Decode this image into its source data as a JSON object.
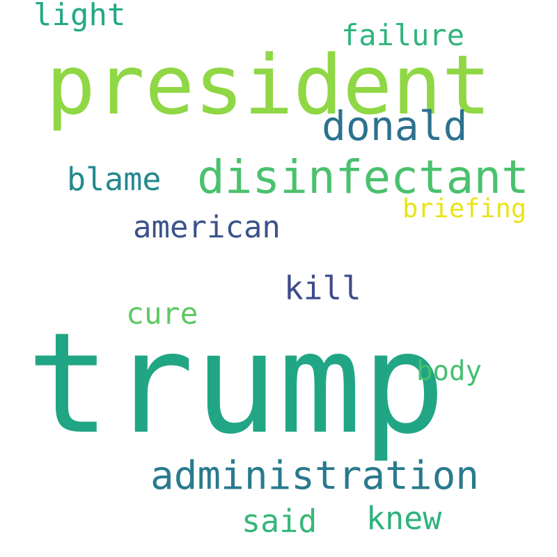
{
  "background_color": "#ffffff",
  "words": {
    "trump": {
      "text": "trump",
      "color": "#21a685"
    },
    "president": {
      "text": "president",
      "color": "#8fd744"
    },
    "disinfectant": {
      "text": "disinfectant",
      "color": "#4ac16d"
    },
    "donald": {
      "text": "donald",
      "color": "#2c718e"
    },
    "administration": {
      "text": "administration",
      "color": "#297a8e"
    },
    "american": {
      "text": "american",
      "color": "#3b528b"
    },
    "blame": {
      "text": "blame",
      "color": "#23898e"
    },
    "light": {
      "text": "light",
      "color": "#22a884"
    },
    "failure": {
      "text": "failure",
      "color": "#2fb47c"
    },
    "briefing": {
      "text": "briefing",
      "color": "#e8e419"
    },
    "kill": {
      "text": "kill",
      "color": "#3e4c8a"
    },
    "cure": {
      "text": "cure",
      "color": "#5ec962"
    },
    "body": {
      "text": "body",
      "color": "#44bf70"
    },
    "said": {
      "text": "said",
      "color": "#35b779"
    },
    "knew": {
      "text": "knew",
      "color": "#2db27d"
    }
  }
}
